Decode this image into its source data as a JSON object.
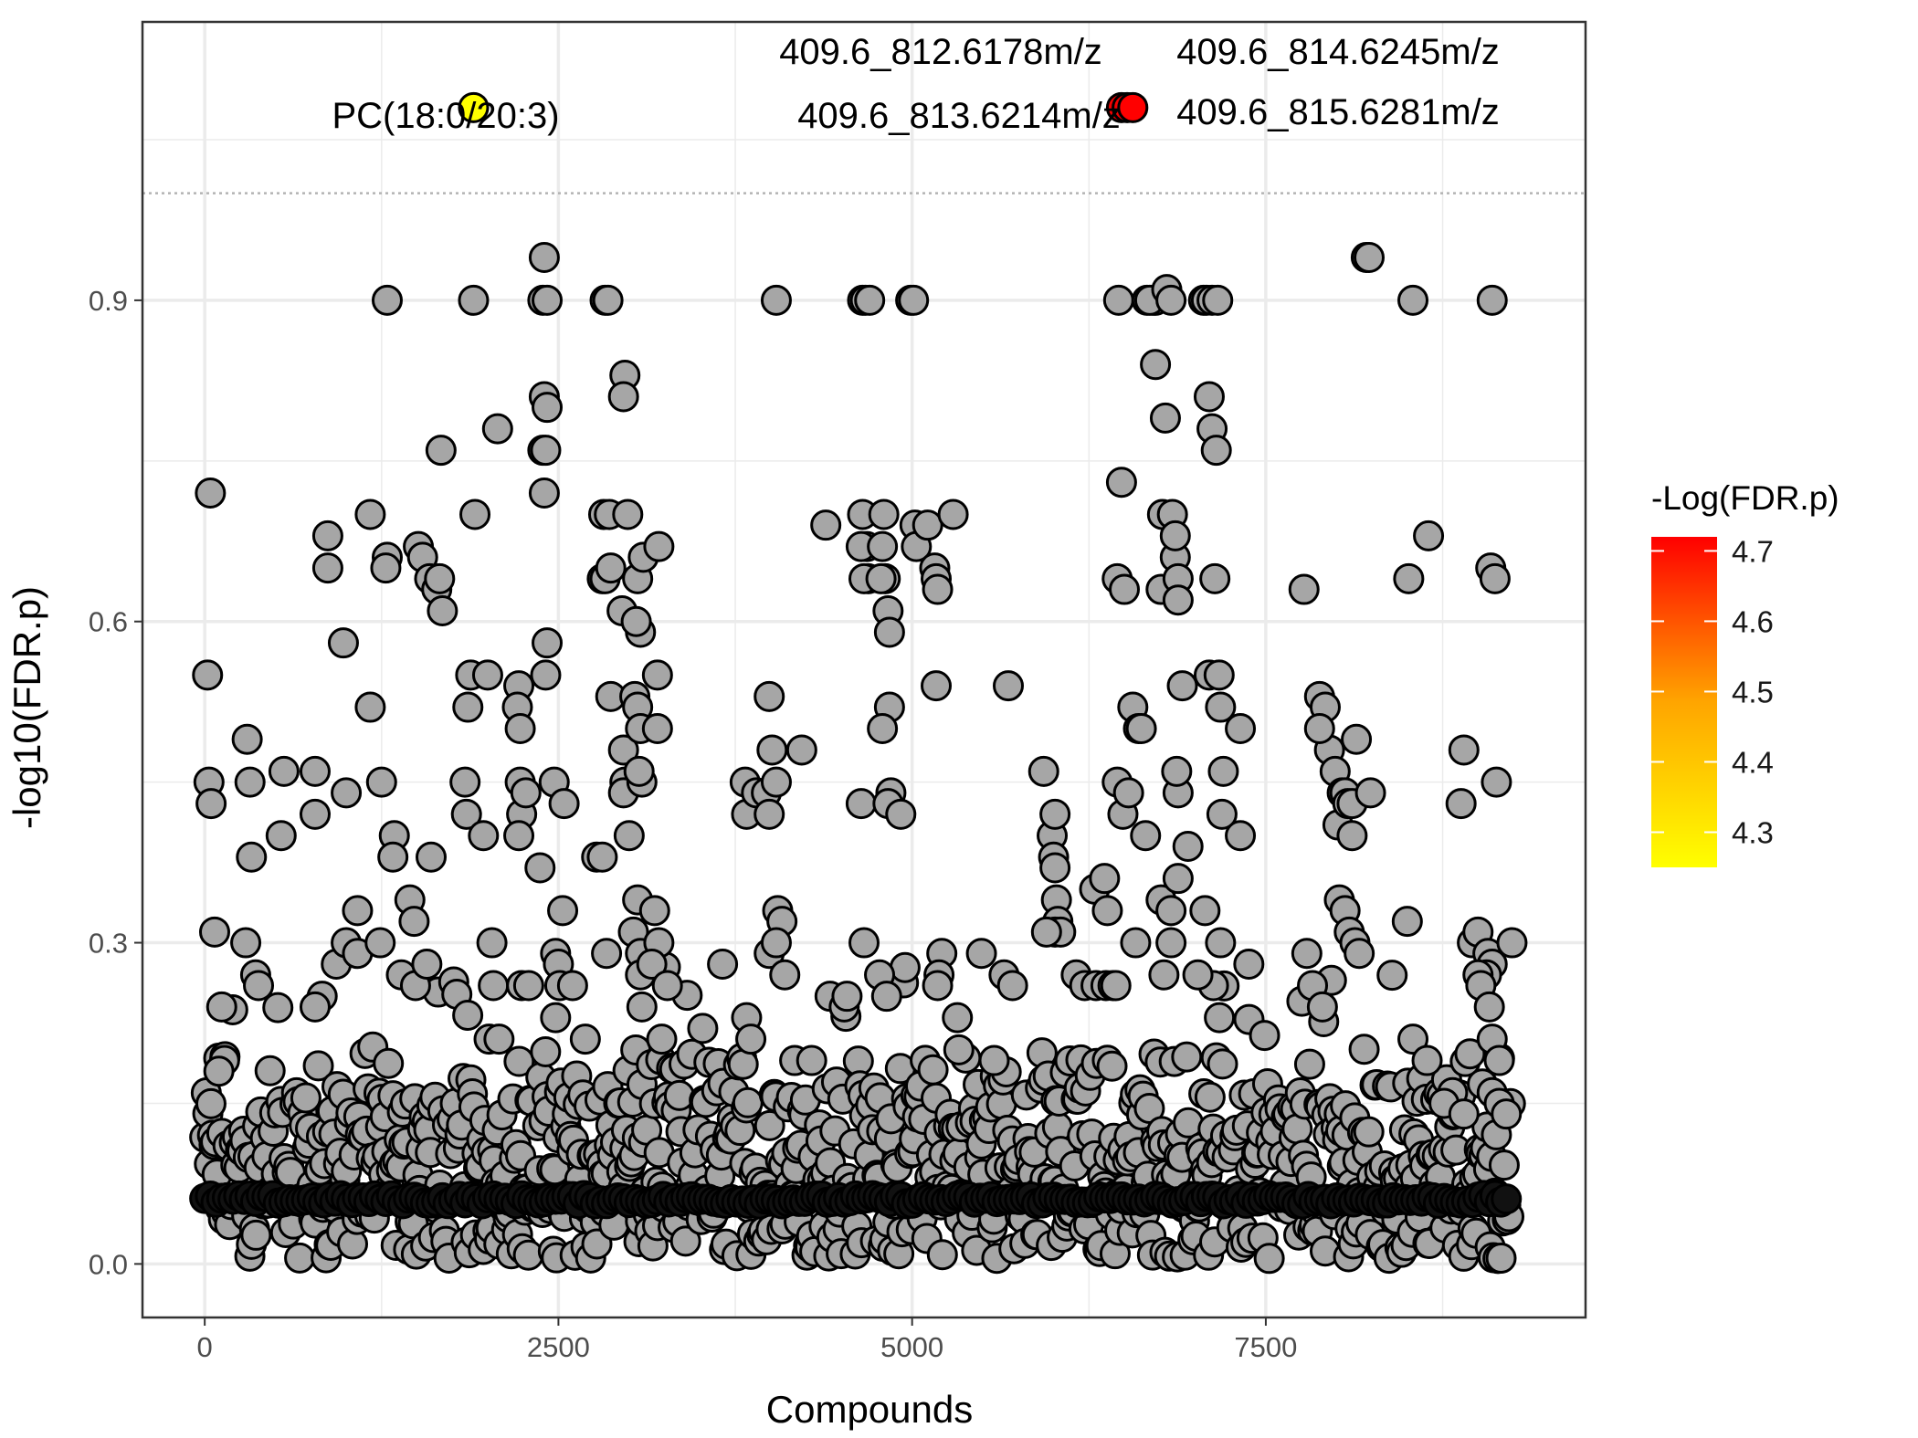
{
  "chart_data": {
    "type": "scatter",
    "title": "",
    "xlabel": "Compounds",
    "ylabel": "-log10(FDR.p)",
    "xlim": [
      -440,
      9760
    ],
    "ylim": [
      -0.05,
      1.16
    ],
    "x_ticks": [
      0,
      2500,
      5000,
      7500
    ],
    "x_tick_labels": [
      "0",
      "2500",
      "5000",
      "7500"
    ],
    "y_ticks": [
      0.0,
      0.3,
      0.6,
      0.9
    ],
    "y_tick_labels": [
      "0.0",
      "0.3",
      "0.6",
      "0.9"
    ],
    "grid": true,
    "threshold_line": {
      "y": 1.0,
      "style": "dotted",
      "color": "#b3b3b3"
    },
    "n_compounds": 9240,
    "base_color": "#a6a6a6",
    "highlighted": [
      {
        "x": 1900,
        "y": 1.08,
        "value": 4.3,
        "color": "#ffff00",
        "label": "PC(18:0/20:3)"
      },
      {
        "x": 6480,
        "y": 1.08,
        "value": 4.68,
        "color": "#f20000",
        "label": ""
      },
      {
        "x": 6520,
        "y": 1.08,
        "value": 4.68,
        "color": "#f20000",
        "label": ""
      },
      {
        "x": 6560,
        "y": 1.08,
        "value": 4.7,
        "color": "#ff0000",
        "label": ""
      }
    ],
    "annotations": [
      "409.6_812.6178m/z",
      "409.6_813.6214m/z",
      "409.6_814.6245m/z",
      "409.6_815.6281m/z"
    ],
    "points": [
      [
        40,
        0.72
      ],
      [
        20,
        0.55
      ],
      [
        30,
        0.45
      ],
      [
        45,
        0.43
      ],
      [
        70,
        0.31
      ],
      [
        120,
        0.24
      ],
      [
        140,
        0.19
      ],
      [
        100,
        0.18
      ],
      [
        300,
        0.49
      ],
      [
        320,
        0.45
      ],
      [
        330,
        0.38
      ],
      [
        290,
        0.3
      ],
      [
        360,
        0.27
      ],
      [
        380,
        0.26
      ],
      [
        560,
        0.46
      ],
      [
        540,
        0.4
      ],
      [
        780,
        0.46
      ],
      [
        780,
        0.42
      ],
      [
        870,
        0.68
      ],
      [
        870,
        0.65
      ],
      [
        830,
        0.25
      ],
      [
        780,
        0.24
      ],
      [
        980,
        0.58
      ],
      [
        1000,
        0.44
      ],
      [
        930,
        0.28
      ],
      [
        1080,
        0.33
      ],
      [
        1000,
        0.3
      ],
      [
        1080,
        0.29
      ],
      [
        1170,
        0.7
      ],
      [
        1170,
        0.52
      ],
      [
        1250,
        0.45
      ],
      [
        1240,
        0.3
      ],
      [
        1290,
        0.9
      ],
      [
        1290,
        0.66
      ],
      [
        1280,
        0.65
      ],
      [
        1340,
        0.4
      ],
      [
        1330,
        0.38
      ],
      [
        1390,
        0.27
      ],
      [
        1450,
        0.34
      ],
      [
        1480,
        0.32
      ],
      [
        1490,
        0.26
      ],
      [
        1510,
        0.67
      ],
      [
        1540,
        0.66
      ],
      [
        1590,
        0.64
      ],
      [
        1640,
        0.63
      ],
      [
        1660,
        0.64
      ],
      [
        1670,
        0.76
      ],
      [
        1680,
        0.61
      ],
      [
        1600,
        0.38
      ],
      [
        1570,
        0.28
      ],
      [
        1900,
        0.9
      ],
      [
        1910,
        0.7
      ],
      [
        1880,
        0.55
      ],
      [
        1860,
        0.52
      ],
      [
        1840,
        0.45
      ],
      [
        1850,
        0.42
      ],
      [
        2000,
        0.55
      ],
      [
        2070,
        0.78
      ],
      [
        1970,
        0.4
      ],
      [
        2030,
        0.3
      ],
      [
        2040,
        0.26
      ],
      [
        2010,
        0.21
      ],
      [
        2080,
        0.21
      ],
      [
        2220,
        0.54
      ],
      [
        2210,
        0.52
      ],
      [
        2230,
        0.5
      ],
      [
        2230,
        0.45
      ],
      [
        2240,
        0.42
      ],
      [
        2220,
        0.4
      ],
      [
        2270,
        0.44
      ],
      [
        2240,
        0.26
      ],
      [
        2290,
        0.26
      ],
      [
        2400,
        0.94
      ],
      [
        2390,
        0.9
      ],
      [
        2420,
        0.9
      ],
      [
        2400,
        0.81
      ],
      [
        2420,
        0.8
      ],
      [
        2390,
        0.76
      ],
      [
        2410,
        0.76
      ],
      [
        2400,
        0.72
      ],
      [
        2420,
        0.58
      ],
      [
        2410,
        0.55
      ],
      [
        2370,
        0.37
      ],
      [
        2470,
        0.45
      ],
      [
        2540,
        0.43
      ],
      [
        2530,
        0.33
      ],
      [
        2480,
        0.29
      ],
      [
        2500,
        0.28
      ],
      [
        2510,
        0.26
      ],
      [
        2600,
        0.26
      ],
      [
        2480,
        0.23
      ],
      [
        2830,
        0.9
      ],
      [
        2850,
        0.9
      ],
      [
        2820,
        0.7
      ],
      [
        2860,
        0.7
      ],
      [
        2810,
        0.64
      ],
      [
        2830,
        0.64
      ],
      [
        2870,
        0.65
      ],
      [
        2870,
        0.53
      ],
      [
        2770,
        0.38
      ],
      [
        2810,
        0.38
      ],
      [
        2840,
        0.29
      ],
      [
        2690,
        0.21
      ],
      [
        2970,
        0.83
      ],
      [
        2960,
        0.81
      ],
      [
        2990,
        0.7
      ],
      [
        2950,
        0.61
      ],
      [
        2960,
        0.48
      ],
      [
        2970,
        0.45
      ],
      [
        2960,
        0.44
      ],
      [
        3000,
        0.4
      ],
      [
        3030,
        0.31
      ],
      [
        3060,
        0.34
      ],
      [
        3080,
        0.29
      ],
      [
        3080,
        0.27
      ],
      [
        3040,
        0.53
      ],
      [
        3060,
        0.52
      ],
      [
        3080,
        0.5
      ],
      [
        3090,
        0.45
      ],
      [
        3070,
        0.46
      ],
      [
        3080,
        0.59
      ],
      [
        3050,
        0.6
      ],
      [
        3060,
        0.64
      ],
      [
        3100,
        0.66
      ],
      [
        3210,
        0.67
      ],
      [
        3200,
        0.55
      ],
      [
        3200,
        0.5
      ],
      [
        3180,
        0.33
      ],
      [
        3210,
        0.3
      ],
      [
        3160,
        0.28
      ],
      [
        3270,
        0.26
      ],
      [
        3230,
        0.21
      ],
      [
        3090,
        0.24
      ],
      [
        3520,
        0.22
      ],
      [
        3660,
        0.28
      ],
      [
        3830,
        0.23
      ],
      [
        3860,
        0.21
      ],
      [
        3820,
        0.45
      ],
      [
        3830,
        0.42
      ],
      [
        3900,
        0.44
      ],
      [
        3970,
        0.44
      ],
      [
        3990,
        0.42
      ],
      [
        3990,
        0.53
      ],
      [
        4010,
        0.48
      ],
      [
        4040,
        0.45
      ],
      [
        4050,
        0.33
      ],
      [
        4080,
        0.32
      ],
      [
        3990,
        0.29
      ],
      [
        4040,
        0.3
      ],
      [
        4100,
        0.27
      ],
      [
        4040,
        0.9
      ],
      [
        4220,
        0.48
      ],
      [
        4170,
        0.19
      ],
      [
        4290,
        0.19
      ],
      [
        4390,
        0.69
      ],
      [
        4420,
        0.25
      ],
      [
        4520,
        0.24
      ],
      [
        4540,
        0.25
      ],
      [
        4650,
        0.9
      ],
      [
        4670,
        0.9
      ],
      [
        4700,
        0.9
      ],
      [
        4650,
        0.7
      ],
      [
        4680,
        0.67
      ],
      [
        4640,
        0.67
      ],
      [
        4690,
        0.64
      ],
      [
        4660,
        0.64
      ],
      [
        4640,
        0.43
      ],
      [
        4660,
        0.3
      ],
      [
        4800,
        0.7
      ],
      [
        4790,
        0.67
      ],
      [
        4810,
        0.64
      ],
      [
        4780,
        0.64
      ],
      [
        4830,
        0.61
      ],
      [
        4840,
        0.59
      ],
      [
        4840,
        0.52
      ],
      [
        4790,
        0.5
      ],
      [
        4850,
        0.44
      ],
      [
        4830,
        0.43
      ],
      [
        4770,
        0.27
      ],
      [
        4820,
        0.25
      ],
      [
        4920,
        0.42
      ],
      [
        4990,
        0.9
      ],
      [
        5010,
        0.9
      ],
      [
        5020,
        0.69
      ],
      [
        5030,
        0.67
      ],
      [
        5110,
        0.69
      ],
      [
        5160,
        0.65
      ],
      [
        5170,
        0.64
      ],
      [
        5180,
        0.63
      ],
      [
        5170,
        0.54
      ],
      [
        5210,
        0.29
      ],
      [
        5190,
        0.27
      ],
      [
        5180,
        0.26
      ],
      [
        5290,
        0.7
      ],
      [
        5330,
        0.2
      ],
      [
        5320,
        0.23
      ],
      [
        5490,
        0.29
      ],
      [
        5580,
        0.19
      ],
      [
        5680,
        0.54
      ],
      [
        5650,
        0.27
      ],
      [
        5710,
        0.26
      ],
      [
        5930,
        0.46
      ],
      [
        5990,
        0.4
      ],
      [
        6000,
        0.38
      ],
      [
        6010,
        0.37
      ],
      [
        6010,
        0.42
      ],
      [
        6020,
        0.34
      ],
      [
        6030,
        0.32
      ],
      [
        6010,
        0.31
      ],
      [
        6050,
        0.31
      ],
      [
        5950,
        0.31
      ],
      [
        6160,
        0.27
      ],
      [
        6220,
        0.26
      ],
      [
        6290,
        0.35
      ],
      [
        6360,
        0.36
      ],
      [
        6380,
        0.33
      ],
      [
        6300,
        0.26
      ],
      [
        6370,
        0.26
      ],
      [
        6420,
        0.26
      ],
      [
        6440,
        0.26
      ],
      [
        6460,
        0.9
      ],
      [
        6480,
        0.73
      ],
      [
        6450,
        0.64
      ],
      [
        6500,
        0.63
      ],
      [
        6450,
        0.45
      ],
      [
        6490,
        0.42
      ],
      [
        6530,
        0.44
      ],
      [
        6580,
        0.3
      ],
      [
        6560,
        0.52
      ],
      [
        6600,
        0.5
      ],
      [
        6620,
        0.5
      ],
      [
        6650,
        0.4
      ],
      [
        6700,
        0.9
      ],
      [
        6720,
        0.9
      ],
      [
        6660,
        0.9
      ],
      [
        6680,
        0.9
      ],
      [
        6720,
        0.84
      ],
      [
        6790,
        0.79
      ],
      [
        6800,
        0.91
      ],
      [
        6830,
        0.9
      ],
      [
        6770,
        0.7
      ],
      [
        6760,
        0.63
      ],
      [
        6840,
        0.7
      ],
      [
        6860,
        0.66
      ],
      [
        6860,
        0.68
      ],
      [
        6880,
        0.64
      ],
      [
        6880,
        0.62
      ],
      [
        6910,
        0.54
      ],
      [
        6880,
        0.44
      ],
      [
        6870,
        0.46
      ],
      [
        6760,
        0.34
      ],
      [
        6830,
        0.33
      ],
      [
        6880,
        0.36
      ],
      [
        6950,
        0.39
      ],
      [
        6830,
        0.3
      ],
      [
        6780,
        0.27
      ],
      [
        7060,
        0.9
      ],
      [
        7080,
        0.9
      ],
      [
        7120,
        0.9
      ],
      [
        7160,
        0.9
      ],
      [
        7100,
        0.81
      ],
      [
        7120,
        0.78
      ],
      [
        7150,
        0.76
      ],
      [
        7140,
        0.64
      ],
      [
        7100,
        0.55
      ],
      [
        7170,
        0.55
      ],
      [
        7180,
        0.52
      ],
      [
        7200,
        0.46
      ],
      [
        7190,
        0.42
      ],
      [
        7320,
        0.5
      ],
      [
        7320,
        0.4
      ],
      [
        7180,
        0.3
      ],
      [
        7130,
        0.26
      ],
      [
        7070,
        0.33
      ],
      [
        7020,
        0.27
      ],
      [
        7380,
        0.28
      ],
      [
        7770,
        0.63
      ],
      [
        7880,
        0.53
      ],
      [
        7920,
        0.52
      ],
      [
        7950,
        0.48
      ],
      [
        7990,
        0.46
      ],
      [
        7880,
        0.5
      ],
      [
        8040,
        0.44
      ],
      [
        8060,
        0.44
      ],
      [
        8010,
        0.41
      ],
      [
        8080,
        0.43
      ],
      [
        8110,
        0.43
      ],
      [
        8110,
        0.4
      ],
      [
        8140,
        0.49
      ],
      [
        8240,
        0.44
      ],
      [
        8210,
        0.94
      ],
      [
        8230,
        0.94
      ],
      [
        8020,
        0.34
      ],
      [
        8060,
        0.33
      ],
      [
        8090,
        0.31
      ],
      [
        8130,
        0.3
      ],
      [
        8160,
        0.29
      ],
      [
        7790,
        0.29
      ],
      [
        7830,
        0.26
      ],
      [
        7900,
        0.24
      ],
      [
        8540,
        0.9
      ],
      [
        8510,
        0.64
      ],
      [
        8650,
        0.68
      ],
      [
        8500,
        0.32
      ],
      [
        8540,
        0.21
      ],
      [
        8640,
        0.19
      ],
      [
        8880,
        0.43
      ],
      [
        8900,
        0.48
      ],
      [
        8960,
        0.3
      ],
      [
        9000,
        0.31
      ],
      [
        9070,
        0.29
      ],
      [
        9100,
        0.28
      ],
      [
        9060,
        0.27
      ],
      [
        9000,
        0.27
      ],
      [
        9020,
        0.26
      ],
      [
        9080,
        0.24
      ],
      [
        9100,
        0.21
      ],
      [
        9150,
        0.19
      ],
      [
        9100,
        0.9
      ],
      [
        9090,
        0.65
      ],
      [
        9120,
        0.64
      ],
      [
        9130,
        0.45
      ],
      [
        9240,
        0.3
      ],
      [
        8820,
        0.16
      ],
      [
        8760,
        0.15
      ],
      [
        8900,
        0.14
      ],
      [
        9100,
        0.16
      ],
      [
        9150,
        0.15
      ],
      [
        9200,
        0.14
      ]
    ]
  }
}
